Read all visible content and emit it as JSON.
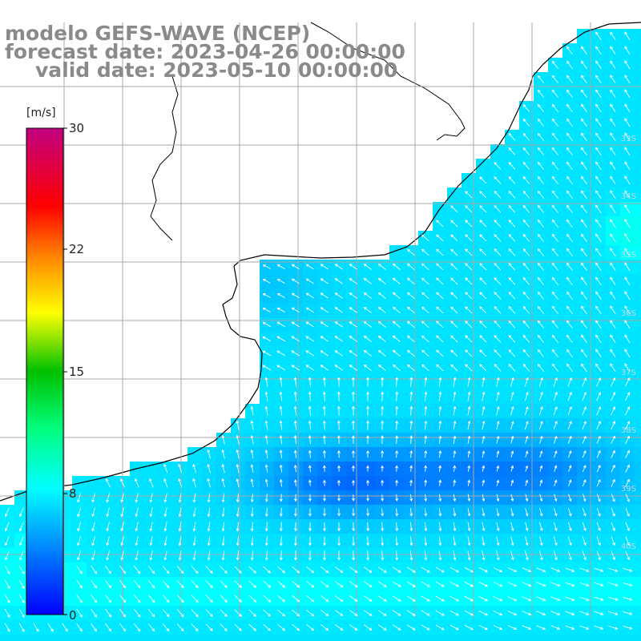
{
  "title": {
    "line1": "modelo GEFS-WAVE (NCEP)",
    "line2": "forecast date: 2023-04-26 00:00:00",
    "line3": "valid date: 2023-05-10 00:00:00"
  },
  "colorbar": {
    "unit": "[m/s]",
    "ticks": [
      {
        "label": "30",
        "value": 30
      },
      {
        "label": "22",
        "value": 22
      },
      {
        "label": "15",
        "value": 15
      },
      {
        "label": "8",
        "value": 8
      },
      {
        "label": "0",
        "value": 0
      }
    ],
    "stops": [
      "#0000ff",
      "#00a0ff",
      "#00ffff",
      "#00ff80",
      "#00c000",
      "#ffff00",
      "#ff8000",
      "#ff0000",
      "#c00080"
    ]
  },
  "lat_labels": [
    {
      "text": "33S"
    },
    {
      "text": "34S"
    },
    {
      "text": "35S"
    },
    {
      "text": "36S"
    },
    {
      "text": "37S"
    },
    {
      "text": "38S"
    },
    {
      "text": "39S"
    },
    {
      "text": "40S"
    }
  ],
  "colors": {
    "land": "#ffffff",
    "coast": "#000000",
    "grid": "#a8a8a8",
    "arrow": "#ffffff",
    "title": "#8a8a8a"
  }
}
